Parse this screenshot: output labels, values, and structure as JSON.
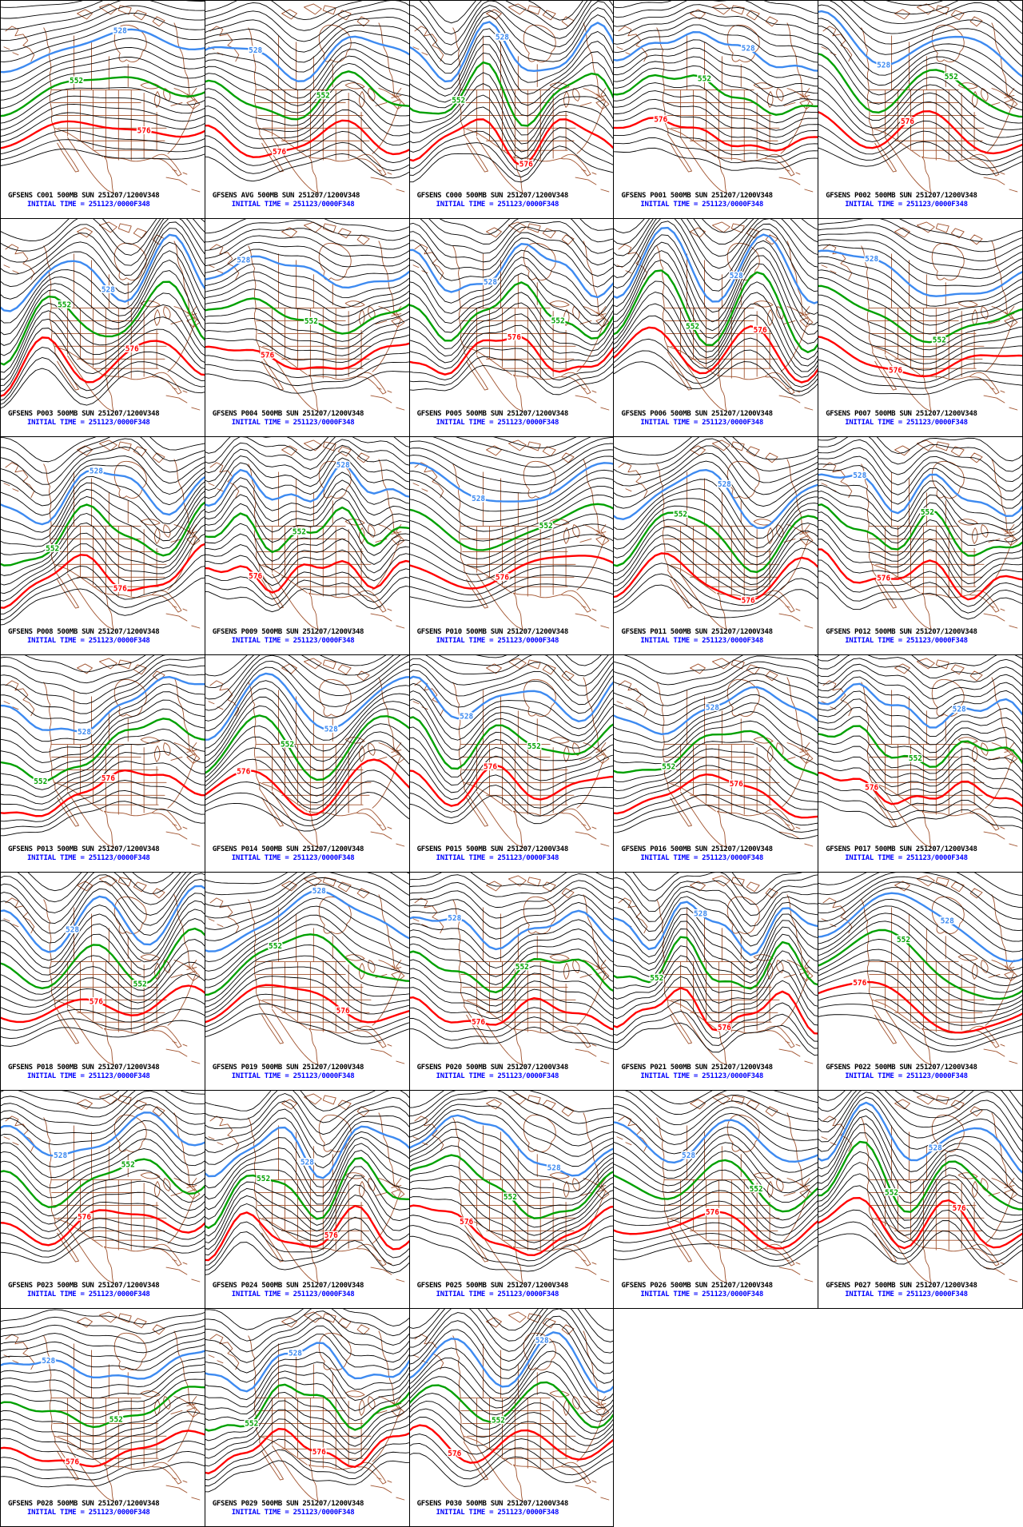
{
  "colors": {
    "background": "#FFFFFF",
    "grid_border": "#000000",
    "contour_black": "#000000",
    "geography_brown": "#A0522D",
    "contour_528_blue": "#3D8AF0",
    "contour_552_green": "#00A000",
    "contour_576_red": "#FF0000",
    "caption_black": "#000000",
    "caption_blue": "#0000FF"
  },
  "caption": {
    "initial_time": "INITIAL TIME = 251123/0000F348"
  },
  "contour_labels": {
    "h528": "528",
    "h552": "552",
    "h576": "576"
  },
  "panels": [
    {
      "id": "C001",
      "title": "GFSENS C001 500MB SUN 251207/1200V348"
    },
    {
      "id": "AVG",
      "title": "GFSENS AVG 500MB SUN 251207/1200V348"
    },
    {
      "id": "C000",
      "title": "GFSENS C000 500MB SUN 251207/1200V348"
    },
    {
      "id": "P001",
      "title": "GFSENS P001 500MB SUN 251207/1200V348"
    },
    {
      "id": "P002",
      "title": "GFSENS P002 500MB SUN 251207/1200V348"
    },
    {
      "id": "P003",
      "title": "GFSENS P003 500MB SUN 251207/1200V348"
    },
    {
      "id": "P004",
      "title": "GFSENS P004 500MB SUN 251207/1200V348"
    },
    {
      "id": "P005",
      "title": "GFSENS P005 500MB SUN 251207/1200V348"
    },
    {
      "id": "P006",
      "title": "GFSENS P006 500MB SUN 251207/1200V348"
    },
    {
      "id": "P007",
      "title": "GFSENS P007 500MB SUN 251207/1200V348"
    },
    {
      "id": "P008",
      "title": "GFSENS P008 500MB SUN 251207/1200V348"
    },
    {
      "id": "P009",
      "title": "GFSENS P009 500MB SUN 251207/1200V348"
    },
    {
      "id": "P010",
      "title": "GFSENS P010 500MB SUN 251207/1200V348"
    },
    {
      "id": "P011",
      "title": "GFSENS P011 500MB SUN 251207/1200V348"
    },
    {
      "id": "P012",
      "title": "GFSENS P012 500MB SUN 251207/1200V348"
    },
    {
      "id": "P013",
      "title": "GFSENS P013 500MB SUN 251207/1200V348"
    },
    {
      "id": "P014",
      "title": "GFSENS P014 500MB SUN 251207/1200V348"
    },
    {
      "id": "P015",
      "title": "GFSENS P015 500MB SUN 251207/1200V348"
    },
    {
      "id": "P016",
      "title": "GFSENS P016 500MB SUN 251207/1200V348"
    },
    {
      "id": "P017",
      "title": "GFSENS P017 500MB SUN 251207/1200V348"
    },
    {
      "id": "P018",
      "title": "GFSENS P018 500MB SUN 251207/1200V348"
    },
    {
      "id": "P019",
      "title": "GFSENS P019 500MB SUN 251207/1200V348"
    },
    {
      "id": "P020",
      "title": "GFSENS P020 500MB SUN 251207/1200V348"
    },
    {
      "id": "P021",
      "title": "GFSENS P021 500MB SUN 251207/1200V348"
    },
    {
      "id": "P022",
      "title": "GFSENS P022 500MB SUN 251207/1200V348"
    },
    {
      "id": "P023",
      "title": "GFSENS P023 500MB SUN 251207/1200V348"
    },
    {
      "id": "P024",
      "title": "GFSENS P024 500MB SUN 251207/1200V348"
    },
    {
      "id": "P025",
      "title": "GFSENS P025 500MB SUN 251207/1200V348"
    },
    {
      "id": "P026",
      "title": "GFSENS P026 500MB SUN 251207/1200V348"
    },
    {
      "id": "P027",
      "title": "GFSENS P027 500MB SUN 251207/1200V348"
    },
    {
      "id": "P028",
      "title": "GFSENS P028 500MB SUN 251207/1200V348"
    },
    {
      "id": "P029",
      "title": "GFSENS P029 500MB SUN 251207/1200V348"
    },
    {
      "id": "P030",
      "title": "GFSENS P030 500MB SUN 251207/1200V348"
    }
  ],
  "chart_data": {
    "type": "contour_map_grid",
    "field": "500MB geopotential height",
    "model": "GFSENS (GFS ensemble)",
    "valid_time": "SUN 251207/1200V348",
    "initial_time": "251123/0000F348",
    "forecast_hour": 348,
    "grid": {
      "columns": 5,
      "rows": 7,
      "panel_count": 33,
      "last_row_panels": 3
    },
    "members": [
      "C001",
      "AVG",
      "C000",
      "P001",
      "P002",
      "P003",
      "P004",
      "P005",
      "P006",
      "P007",
      "P008",
      "P009",
      "P010",
      "P011",
      "P012",
      "P013",
      "P014",
      "P015",
      "P016",
      "P017",
      "P018",
      "P019",
      "P020",
      "P021",
      "P022",
      "P023",
      "P024",
      "P025",
      "P026",
      "P027",
      "P028",
      "P029",
      "P030"
    ],
    "highlighted_contours": [
      {
        "value": 528,
        "color": "#3D8AF0"
      },
      {
        "value": 552,
        "color": "#00A000"
      },
      {
        "value": 576,
        "color": "#FF0000"
      }
    ],
    "other_contours": "unlabeled black lines at regular height intervals",
    "geography": "North America coastlines, state and province borders in brown"
  }
}
